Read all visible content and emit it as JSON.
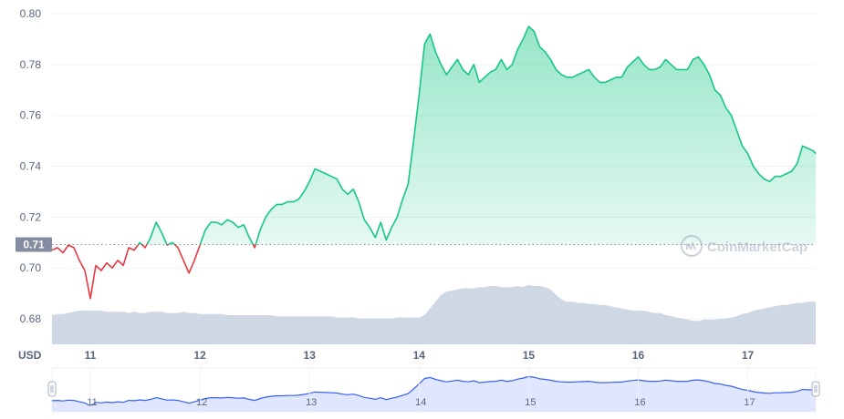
{
  "watermark": {
    "text": "CoinMarketCap",
    "icon": "coinmarketcap-logo-icon"
  },
  "colors": {
    "up": "#16c784",
    "down": "#ea3943",
    "volume": "#cfd6e4",
    "navigator_line": "#3861fb",
    "navigator_fill": "#dfe6fd",
    "grid": "#eff2f5",
    "axis_text": "#58667e",
    "baseline_badge": "#858ca2"
  },
  "chart_data": {
    "type": "line",
    "title": "",
    "xlabel": "",
    "ylabel": "USD",
    "ylim": [
      0.67,
      0.8
    ],
    "y_ticks": [
      "0.68",
      "0.70",
      "0.72",
      "0.74",
      "0.76",
      "0.78",
      "0.80"
    ],
    "x_ticks": [
      "11",
      "12",
      "13",
      "14",
      "15",
      "16",
      "17"
    ],
    "x_range_days": [
      10.65,
      17.62
    ],
    "baseline": {
      "value": 0.7092,
      "label": "0.71"
    },
    "grid": true,
    "series": [
      {
        "x": [
          10.65,
          10.7,
          10.75,
          10.8,
          10.85,
          10.9,
          10.95,
          11.0,
          11.05,
          11.1,
          11.15,
          11.2,
          11.25,
          11.3,
          11.35,
          11.4,
          11.45,
          11.5,
          11.55,
          11.6,
          11.65,
          11.7,
          11.75,
          11.8,
          11.85,
          11.9,
          11.95,
          12.0,
          12.05,
          12.1,
          12.15,
          12.2,
          12.25,
          12.3,
          12.35,
          12.4,
          12.45,
          12.5,
          12.55,
          12.6,
          12.65,
          12.7,
          12.75,
          12.8,
          12.85,
          12.9,
          12.95,
          13.0,
          13.05,
          13.1,
          13.15,
          13.2,
          13.25,
          13.3,
          13.35,
          13.4,
          13.45,
          13.5,
          13.55,
          13.6,
          13.65,
          13.7,
          13.75,
          13.8,
          13.85,
          13.9,
          13.95,
          14.0,
          14.05,
          14.1,
          14.15,
          14.2,
          14.25,
          14.3,
          14.35,
          14.4,
          14.45,
          14.5,
          14.55,
          14.6,
          14.65,
          14.7,
          14.75,
          14.8,
          14.85,
          14.9,
          14.95,
          15.0,
          15.05,
          15.1,
          15.15,
          15.2,
          15.25,
          15.3,
          15.35,
          15.4,
          15.45,
          15.5,
          15.55,
          15.6,
          15.65,
          15.7,
          15.75,
          15.8,
          15.85,
          15.9,
          15.95,
          16.0,
          16.05,
          16.1,
          16.15,
          16.2,
          16.25,
          16.3,
          16.35,
          16.4,
          16.45,
          16.5,
          16.55,
          16.6,
          16.65,
          16.7,
          16.75,
          16.8,
          16.85,
          16.9,
          16.95,
          17.0,
          17.05,
          17.1,
          17.15,
          17.2,
          17.25,
          17.3,
          17.35,
          17.4,
          17.45,
          17.5,
          17.55,
          17.6,
          17.62
        ],
        "price": [
          0.707,
          0.708,
          0.706,
          0.709,
          0.708,
          0.703,
          0.699,
          0.688,
          0.701,
          0.699,
          0.702,
          0.7,
          0.703,
          0.701,
          0.708,
          0.707,
          0.71,
          0.708,
          0.712,
          0.718,
          0.714,
          0.709,
          0.71,
          0.708,
          0.703,
          0.698,
          0.703,
          0.709,
          0.715,
          0.718,
          0.718,
          0.717,
          0.719,
          0.718,
          0.716,
          0.717,
          0.712,
          0.708,
          0.715,
          0.72,
          0.723,
          0.725,
          0.725,
          0.726,
          0.726,
          0.727,
          0.73,
          0.734,
          0.739,
          0.738,
          0.737,
          0.736,
          0.735,
          0.731,
          0.729,
          0.731,
          0.726,
          0.719,
          0.716,
          0.712,
          0.718,
          0.711,
          0.716,
          0.72,
          0.727,
          0.733,
          0.75,
          0.768,
          0.788,
          0.792,
          0.785,
          0.78,
          0.776,
          0.779,
          0.782,
          0.778,
          0.776,
          0.78,
          0.773,
          0.775,
          0.777,
          0.778,
          0.782,
          0.778,
          0.78,
          0.786,
          0.79,
          0.795,
          0.793,
          0.787,
          0.785,
          0.782,
          0.778,
          0.776,
          0.775,
          0.775,
          0.776,
          0.777,
          0.778,
          0.775,
          0.773,
          0.773,
          0.774,
          0.775,
          0.775,
          0.779,
          0.781,
          0.783,
          0.78,
          0.778,
          0.778,
          0.779,
          0.782,
          0.78,
          0.778,
          0.778,
          0.778,
          0.782,
          0.783,
          0.78,
          0.776,
          0.77,
          0.768,
          0.763,
          0.76,
          0.754,
          0.748,
          0.745,
          0.74,
          0.737,
          0.735,
          0.734,
          0.736,
          0.736,
          0.737,
          0.738,
          0.741,
          0.748,
          0.747,
          0.746,
          0.745
        ],
        "volume_index": [
          26,
          27,
          27,
          28,
          29,
          30,
          30,
          30,
          30,
          30,
          29,
          29,
          29,
          29,
          28,
          29,
          28,
          28,
          29,
          29,
          29,
          28,
          28,
          28,
          29,
          28,
          28,
          27,
          27,
          27,
          27,
          27,
          26,
          26,
          26,
          26,
          26,
          26,
          26,
          26,
          26,
          25,
          25,
          25,
          25,
          25,
          25,
          25,
          25,
          25,
          25,
          25,
          24,
          24,
          24,
          24,
          23,
          23,
          23,
          23,
          23,
          23,
          23,
          24,
          24,
          24,
          24,
          24,
          26,
          32,
          38,
          44,
          47,
          48,
          49,
          50,
          50,
          50,
          51,
          51,
          52,
          52,
          51,
          51,
          51,
          52,
          51,
          53,
          52,
          52,
          51,
          49,
          44,
          40,
          38,
          38,
          37,
          37,
          36,
          36,
          35,
          35,
          34,
          33,
          32,
          31,
          30,
          30,
          30,
          29,
          28,
          28,
          26,
          25,
          24,
          23,
          22,
          21,
          21,
          22,
          22,
          22,
          23,
          23,
          24,
          25,
          27,
          28,
          30,
          31,
          32,
          33,
          34,
          35,
          35,
          36,
          37,
          37,
          38,
          38,
          38
        ]
      }
    ]
  }
}
